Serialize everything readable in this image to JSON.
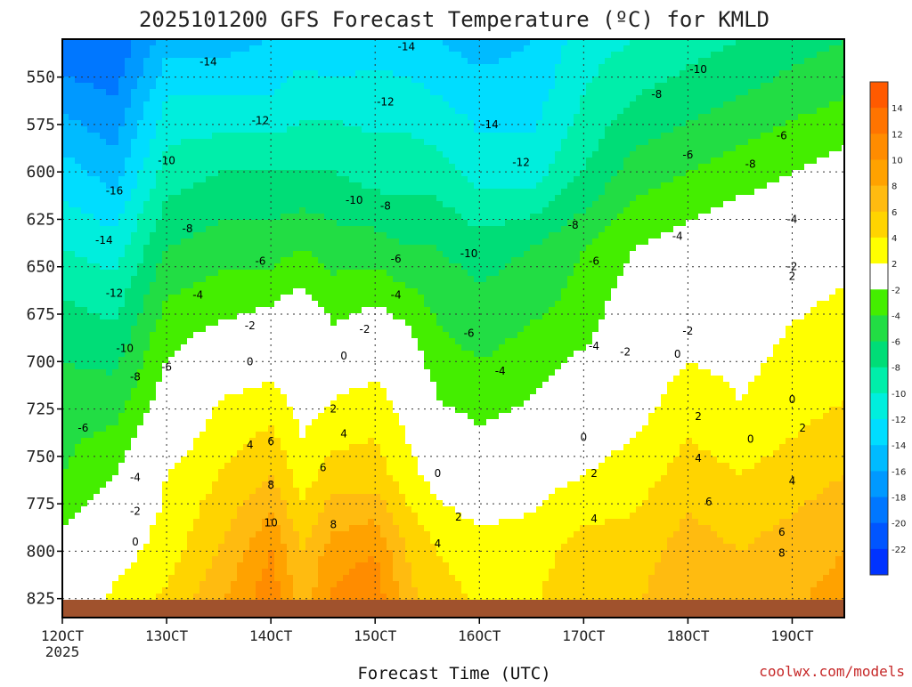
{
  "chart_data": {
    "type": "heatmap",
    "title": "2025101200 GFS Forecast Temperature (ºC) for KMLD",
    "xlabel": "Forecast Time (UTC)",
    "credit": "coolwx.com/models",
    "yaxis": {
      "ticks": [
        550,
        575,
        600,
        625,
        650,
        675,
        700,
        725,
        750,
        775,
        800,
        825
      ],
      "range": [
        530,
        835
      ],
      "units": "hPa"
    },
    "xaxis": {
      "ticks": [
        {
          "label": "12OCT",
          "sub": "2025",
          "day": 12
        },
        {
          "label": "13OCT",
          "sub": "",
          "day": 13
        },
        {
          "label": "14OCT",
          "sub": "",
          "day": 14
        },
        {
          "label": "15OCT",
          "sub": "",
          "day": 15
        },
        {
          "label": "16OCT",
          "sub": "",
          "day": 16
        },
        {
          "label": "17OCT",
          "sub": "",
          "day": 17
        },
        {
          "label": "18OCT",
          "sub": "",
          "day": 18
        },
        {
          "label": "19OCT",
          "sub": "",
          "day": 19
        }
      ],
      "range": [
        12.0,
        19.5
      ]
    },
    "colorbar": {
      "ticks": [
        "14",
        "12",
        "10",
        "8",
        "6",
        "4",
        "2",
        "-2",
        "-4",
        "-6",
        "-8",
        "-10",
        "-12",
        "-14",
        "-16",
        "-18",
        "-20",
        "-22"
      ],
      "bands": [
        {
          "min": 14,
          "max": 16,
          "color": "#ff5a00"
        },
        {
          "min": 12,
          "max": 14,
          "color": "#ff7400"
        },
        {
          "min": 10,
          "max": 12,
          "color": "#ff8c00"
        },
        {
          "min": 8,
          "max": 10,
          "color": "#ffa200"
        },
        {
          "min": 6,
          "max": 8,
          "color": "#ffbb10"
        },
        {
          "min": 4,
          "max": 6,
          "color": "#ffd400"
        },
        {
          "min": 2,
          "max": 4,
          "color": "#ffff00"
        },
        {
          "min": -2,
          "max": 2,
          "color": "#ffffff"
        },
        {
          "min": -4,
          "max": -2,
          "color": "#44ee00"
        },
        {
          "min": -6,
          "max": -4,
          "color": "#22dd44"
        },
        {
          "min": -8,
          "max": -6,
          "color": "#00dd77"
        },
        {
          "min": -10,
          "max": -8,
          "color": "#00eeaa"
        },
        {
          "min": -12,
          "max": -10,
          "color": "#00eedd"
        },
        {
          "min": -14,
          "max": -12,
          "color": "#00ddff"
        },
        {
          "min": -16,
          "max": -14,
          "color": "#00bbff"
        },
        {
          "min": -18,
          "max": -16,
          "color": "#0099ff"
        },
        {
          "min": -20,
          "max": -18,
          "color": "#0077ff"
        },
        {
          "min": -22,
          "max": -20,
          "color": "#0055ff"
        },
        {
          "min": -24,
          "max": -22,
          "color": "#0033ff"
        }
      ]
    },
    "terrain_color": "#a0522d",
    "contour_line_color": "#000000",
    "zero_line_color": "#b0186a",
    "samples": {
      "x": [
        12.0,
        12.5,
        13.0,
        13.5,
        14.0,
        14.3,
        14.6,
        15.0,
        15.3,
        15.6,
        16.0,
        16.5,
        17.0,
        17.5,
        18.0,
        18.5,
        19.0,
        19.5
      ],
      "p": [
        530,
        560,
        600,
        640,
        680,
        720,
        760,
        800,
        835
      ],
      "t": [
        [
          -20,
          -20,
          -15,
          -15,
          -14,
          -13,
          -14,
          -13,
          -14,
          -14,
          -15,
          -14,
          -11,
          -10,
          -9,
          -8,
          -7,
          -6
        ],
        [
          -17,
          -18,
          -12,
          -12,
          -12,
          -11,
          -11,
          -11,
          -11,
          -12,
          -13,
          -13,
          -10,
          -8,
          -7,
          -6,
          -5,
          -4
        ],
        [
          -13,
          -15,
          -9,
          -8,
          -8,
          -8,
          -8,
          -9,
          -9,
          -9,
          -11,
          -11,
          -8,
          -5,
          -4,
          -3,
          -2,
          -1
        ],
        [
          -10,
          -11,
          -6,
          -5,
          -5,
          -4,
          -5,
          -5,
          -6,
          -6,
          -7,
          -6,
          -4,
          -2,
          -1,
          0,
          0,
          1
        ],
        [
          -7,
          -8,
          -3,
          -2,
          -1,
          0,
          -2,
          -1,
          -2,
          -4,
          -5,
          -4,
          -3,
          0,
          1,
          1,
          2,
          3
        ],
        [
          -5,
          -5,
          -1,
          2,
          3,
          1,
          2,
          3,
          1,
          -2,
          -3,
          -2,
          0,
          1,
          3,
          2,
          3,
          4
        ],
        [
          -4,
          -2,
          2,
          4,
          6,
          3,
          5,
          5,
          3,
          1,
          0,
          1,
          2,
          3,
          5,
          4,
          5,
          6
        ],
        [
          -1,
          1,
          3,
          6,
          10,
          6,
          9,
          10,
          6,
          4,
          3,
          3,
          5,
          5,
          7,
          6,
          7,
          8
        ],
        [
          1,
          3,
          5,
          8,
          12,
          7,
          11,
          12,
          7,
          5,
          4,
          4,
          6,
          6,
          8,
          7,
          8,
          9
        ]
      ]
    },
    "contour_labels": [
      {
        "text": "-14",
        "x": 13.4,
        "p": 542
      },
      {
        "text": "-14",
        "x": 15.3,
        "p": 534
      },
      {
        "text": "-12",
        "x": 15.1,
        "p": 563
      },
      {
        "text": "-14",
        "x": 16.1,
        "p": 575
      },
      {
        "text": "-12",
        "x": 16.4,
        "p": 595
      },
      {
        "text": "-12",
        "x": 13.9,
        "p": 573
      },
      {
        "text": "-10",
        "x": 13.0,
        "p": 594
      },
      {
        "text": "-16",
        "x": 12.5,
        "p": 610
      },
      {
        "text": "-14",
        "x": 12.4,
        "p": 636
      },
      {
        "text": "-12",
        "x": 12.5,
        "p": 664
      },
      {
        "text": "-10",
        "x": 12.6,
        "p": 693
      },
      {
        "text": "-8",
        "x": 12.7,
        "p": 708
      },
      {
        "text": "-6",
        "x": 12.2,
        "p": 735
      },
      {
        "text": "-4",
        "x": 12.7,
        "p": 761
      },
      {
        "text": "-2",
        "x": 12.7,
        "p": 779
      },
      {
        "text": "0",
        "x": 12.7,
        "p": 795
      },
      {
        "text": "-8",
        "x": 13.2,
        "p": 630
      },
      {
        "text": "-6",
        "x": 13.9,
        "p": 647
      },
      {
        "text": "-4",
        "x": 13.3,
        "p": 665
      },
      {
        "text": "-6",
        "x": 13.0,
        "p": 703
      },
      {
        "text": "-2",
        "x": 13.8,
        "p": 681
      },
      {
        "text": "0",
        "x": 13.8,
        "p": 700
      },
      {
        "text": "-10",
        "x": 14.8,
        "p": 615
      },
      {
        "text": "-8",
        "x": 15.1,
        "p": 618
      },
      {
        "text": "-6",
        "x": 15.2,
        "p": 646
      },
      {
        "text": "-4",
        "x": 15.2,
        "p": 665
      },
      {
        "text": "-2",
        "x": 14.9,
        "p": 683
      },
      {
        "text": "0",
        "x": 14.7,
        "p": 697
      },
      {
        "text": "2",
        "x": 14.6,
        "p": 725
      },
      {
        "text": "4",
        "x": 14.7,
        "p": 738
      },
      {
        "text": "4",
        "x": 13.8,
        "p": 744
      },
      {
        "text": "6",
        "x": 14.0,
        "p": 742
      },
      {
        "text": "8",
        "x": 14.0,
        "p": 765
      },
      {
        "text": "10",
        "x": 14.0,
        "p": 785
      },
      {
        "text": "6",
        "x": 14.5,
        "p": 756
      },
      {
        "text": "8",
        "x": 14.6,
        "p": 786
      },
      {
        "text": "-10",
        "x": 15.9,
        "p": 643
      },
      {
        "text": "-6",
        "x": 15.9,
        "p": 685
      },
      {
        "text": "-4",
        "x": 16.2,
        "p": 705
      },
      {
        "text": "0",
        "x": 15.6,
        "p": 759
      },
      {
        "text": "2",
        "x": 15.8,
        "p": 782
      },
      {
        "text": "4",
        "x": 15.6,
        "p": 796
      },
      {
        "text": "-8",
        "x": 16.9,
        "p": 628
      },
      {
        "text": "-6",
        "x": 17.1,
        "p": 647
      },
      {
        "text": "-4",
        "x": 17.1,
        "p": 692
      },
      {
        "text": "-2",
        "x": 17.4,
        "p": 695
      },
      {
        "text": "0",
        "x": 17.0,
        "p": 740
      },
      {
        "text": "2",
        "x": 17.1,
        "p": 759
      },
      {
        "text": "4",
        "x": 17.1,
        "p": 783
      },
      {
        "text": "-8",
        "x": 17.7,
        "p": 559
      },
      {
        "text": "-10",
        "x": 18.1,
        "p": 546
      },
      {
        "text": "-6",
        "x": 18.0,
        "p": 591
      },
      {
        "text": "-4",
        "x": 17.9,
        "p": 634
      },
      {
        "text": "-8",
        "x": 18.6,
        "p": 596
      },
      {
        "text": "-6",
        "x": 18.9,
        "p": 581
      },
      {
        "text": "-4",
        "x": 19.0,
        "p": 625
      },
      {
        "text": "-2",
        "x": 19.0,
        "p": 650
      },
      {
        "text": "2",
        "x": 19.0,
        "p": 655
      },
      {
        "text": "-2",
        "x": 18.0,
        "p": 684
      },
      {
        "text": "0",
        "x": 17.9,
        "p": 696
      },
      {
        "text": "2",
        "x": 18.1,
        "p": 729
      },
      {
        "text": "4",
        "x": 18.1,
        "p": 751
      },
      {
        "text": "6",
        "x": 18.2,
        "p": 774
      },
      {
        "text": "0",
        "x": 18.6,
        "p": 741
      },
      {
        "text": "0",
        "x": 19.0,
        "p": 720
      },
      {
        "text": "2",
        "x": 19.1,
        "p": 735
      },
      {
        "text": "4",
        "x": 19.0,
        "p": 763
      },
      {
        "text": "6",
        "x": 18.9,
        "p": 790
      },
      {
        "text": "8",
        "x": 18.9,
        "p": 801
      }
    ]
  }
}
